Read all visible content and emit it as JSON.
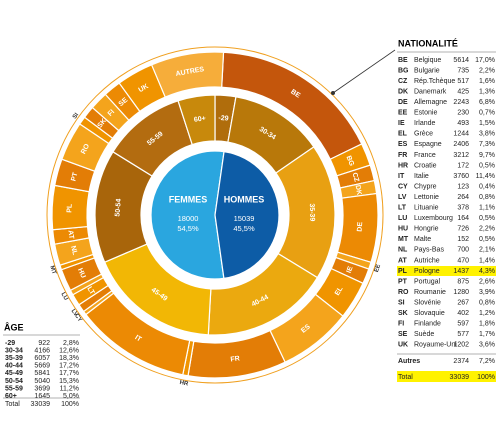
{
  "chart_data": {
    "type": "sunburst",
    "inner": {
      "categories": [
        "FEMMES",
        "HOMMES"
      ],
      "values": [
        18000,
        15039
      ],
      "share_labels": [
        "54,5%",
        "45,5%"
      ],
      "colors": [
        "#2aa6df",
        "#0d5ca6"
      ]
    },
    "age": {
      "title": "ÂGE",
      "categories": [
        "-29",
        "30-34",
        "35-39",
        "40-44",
        "45-49",
        "50-54",
        "55-59",
        "60+"
      ],
      "values": [
        922,
        4166,
        6057,
        5669,
        5841,
        5040,
        3699,
        1645
      ],
      "share_labels": [
        "2,8%",
        "12,6%",
        "18,3%",
        "17,2%",
        "17,7%",
        "15,3%",
        "11,2%",
        "5,0%"
      ],
      "colors": [
        "#b06d0c",
        "#b8780a",
        "#e8a012",
        "#eba90f",
        "#f2b705",
        "#a8650b",
        "#b36c10",
        "#c8890c"
      ],
      "total_label": "Total",
      "total": 33039,
      "total_share_label": "100%"
    },
    "nationality": {
      "title": "NATIONALITÉ",
      "codes": [
        "BE",
        "BG",
        "CZ",
        "DK",
        "DE",
        "EE",
        "IE",
        "EL",
        "ES",
        "FR",
        "HR",
        "IT",
        "CY",
        "LV",
        "LT",
        "LU",
        "HU",
        "MT",
        "NL",
        "AT",
        "PL",
        "PT",
        "RO",
        "SI",
        "SK",
        "FI",
        "SE",
        "UK"
      ],
      "names": [
        "Belgique",
        "Bulgarie",
        "Rép.Tchèque",
        "Danemark",
        "Allemagne",
        "Estonie",
        "Irlande",
        "Grèce",
        "Espagne",
        "France",
        "Croatie",
        "Italie",
        "Chypre",
        "Lettonie",
        "Lituanie",
        "Luxembourg",
        "Hongrie",
        "Malte",
        "Pays-Bas",
        "Autriche",
        "Pologne",
        "Portugal",
        "Roumanie",
        "Slovénie",
        "Slovaquie",
        "Finlande",
        "Suède",
        "Royaume-Uni"
      ],
      "values": [
        5614,
        735,
        517,
        425,
        2243,
        230,
        493,
        1244,
        2406,
        3212,
        172,
        3760,
        123,
        264,
        378,
        164,
        726,
        152,
        700,
        470,
        1437,
        875,
        1280,
        267,
        402,
        597,
        577,
        1202
      ],
      "share_labels": [
        "17,0%",
        "2,2%",
        "1,6%",
        "1,3%",
        "6,8%",
        "0,7%",
        "1,5%",
        "3,8%",
        "7,3%",
        "9,7%",
        "0,5%",
        "11,4%",
        "0,4%",
        "0,8%",
        "1,1%",
        "0,5%",
        "2,2%",
        "0,5%",
        "2,1%",
        "1,4%",
        "4,3%",
        "2,6%",
        "3,9%",
        "0,8%",
        "1,2%",
        "1,8%",
        "1,7%",
        "3,6%"
      ],
      "colors": [
        "#c4560c",
        "#f09400",
        "#e37d06",
        "#f4a41c",
        "#ec8a04",
        "#f4a41c",
        "#e37d06",
        "#f09400",
        "#f4a41c",
        "#e37d06",
        "#f09400",
        "#ec8a04",
        "#f4a41c",
        "#e37d06",
        "#f09400",
        "#f4a41c",
        "#e37d06",
        "#f09400",
        "#f4a41c",
        "#ec8a04",
        "#f09400",
        "#e37d06",
        "#f4a41c",
        "#f09400",
        "#e37d06",
        "#f4a41c",
        "#ec8a04",
        "#f09400"
      ],
      "highlight_index": 20,
      "other_label": "Autres",
      "other_ring_label": "AUTRES",
      "other_value": 2374,
      "other_share_label": "7,2%",
      "other_color": "#f6ad3a",
      "total_label": "Total",
      "total": 33039,
      "total_share_label": "100%"
    }
  }
}
